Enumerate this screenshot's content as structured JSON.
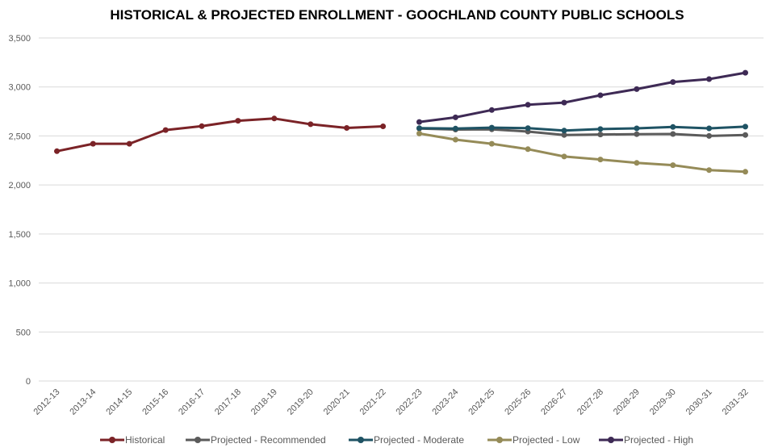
{
  "chart_data": {
    "type": "line",
    "title": "HISTORICAL & PROJECTED ENROLLMENT - GOOCHLAND COUNTY PUBLIC SCHOOLS",
    "xlabel": "",
    "ylabel": "",
    "ylim": [
      0,
      3500
    ],
    "yticks": [
      "0",
      "500",
      "1,000",
      "1,500",
      "2,000",
      "2,500",
      "3,000",
      "3,500"
    ],
    "ytick_values": [
      0,
      500,
      1000,
      1500,
      2000,
      2500,
      3000,
      3500
    ],
    "grid": true,
    "legend_position": "bottom",
    "categories": [
      "2012-13",
      "2013-14",
      "2014-15",
      "2015-16",
      "2016-17",
      "2017-18",
      "2018-19",
      "2019-20",
      "2020-21",
      "2021-22",
      "2022-23",
      "2023-24",
      "2024-25",
      "2025-26",
      "2026-27",
      "2027-28",
      "2028-29",
      "2029-30",
      "2030-31",
      "2031-32"
    ],
    "series": [
      {
        "name": "Historical",
        "color": "#7b2327",
        "values": [
          2345,
          2420,
          2420,
          2560,
          2600,
          2655,
          2678,
          2620,
          2582,
          2598,
          null,
          null,
          null,
          null,
          null,
          null,
          null,
          null,
          null,
          null
        ]
      },
      {
        "name": "Projected - Recommended",
        "color": "#5b5b5b",
        "values": [
          null,
          null,
          null,
          null,
          null,
          null,
          null,
          null,
          null,
          null,
          2575,
          2565,
          2568,
          2545,
          2510,
          2515,
          2518,
          2520,
          2500,
          2510
        ]
      },
      {
        "name": "Projected - Moderate",
        "color": "#1f5364",
        "values": [
          null,
          null,
          null,
          null,
          null,
          null,
          null,
          null,
          null,
          null,
          2580,
          2575,
          2585,
          2580,
          2555,
          2570,
          2578,
          2592,
          2578,
          2595
        ]
      },
      {
        "name": "Projected - Low",
        "color": "#958b58",
        "values": [
          null,
          null,
          null,
          null,
          null,
          null,
          null,
          null,
          null,
          null,
          2525,
          2462,
          2420,
          2365,
          2290,
          2260,
          2225,
          2202,
          2152,
          2135
        ]
      },
      {
        "name": "Projected - High",
        "color": "#3e2a55",
        "values": [
          null,
          null,
          null,
          null,
          null,
          null,
          null,
          null,
          null,
          null,
          2643,
          2690,
          2765,
          2818,
          2840,
          2915,
          2978,
          3050,
          3080,
          3145
        ]
      }
    ]
  }
}
